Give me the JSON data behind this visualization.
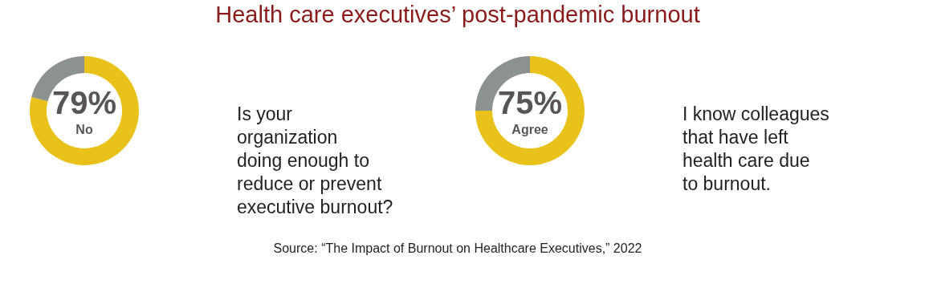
{
  "chart_data": [
    {
      "type": "donut",
      "title": "Health care executives’ post-pandemic burnout",
      "categories": [
        "No",
        null
      ],
      "values": [
        79,
        21
      ],
      "colors": [
        "#e8c21a",
        "#8c938e"
      ],
      "value_labels": [
        "79%",
        null
      ],
      "annotations": [
        "Is your\norganization\ndoing enough to\nreduce or prevent\nexecutive burnout?"
      ]
    },
    {
      "type": "donut",
      "categories": [
        "Agree",
        null
      ],
      "values": [
        75,
        25
      ],
      "colors": [
        "#e8c21a",
        "#8c938e"
      ],
      "value_labels": [
        "75%",
        null
      ],
      "annotations": [
        "I know colleagues\nthat have left\nhealth care due\nto burnout.",
        "Source: “The Impact of Burnout on Healthcare Executives,” 2022"
      ]
    }
  ]
}
